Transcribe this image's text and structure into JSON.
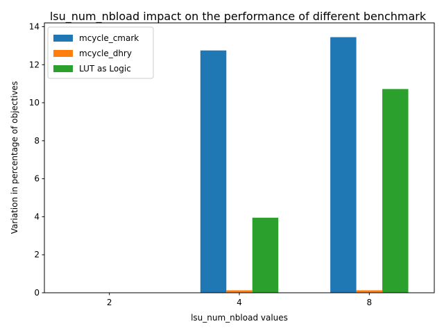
{
  "chart_data": {
    "type": "bar",
    "title": "lsu_num_nbload impact on the performance of different benchmark",
    "xlabel": "lsu_num_nbload values",
    "ylabel": "Variation in percentage of objectives",
    "categories": [
      "2",
      "4",
      "8"
    ],
    "series": [
      {
        "name": "mcycle_cmark",
        "color": "#1f77b4",
        "values": [
          0,
          12.75,
          13.45
        ]
      },
      {
        "name": "mcycle_dhry",
        "color": "#ff7f0e",
        "values": [
          0,
          0.13,
          0.13
        ]
      },
      {
        "name": "LUT as Logic",
        "color": "#2ca02c",
        "values": [
          0,
          3.95,
          10.72
        ]
      }
    ],
    "ylim": [
      0,
      14.2
    ],
    "yticks": [
      0,
      2,
      4,
      6,
      8,
      10,
      12,
      14
    ],
    "grid": false,
    "legend": "top-left"
  }
}
